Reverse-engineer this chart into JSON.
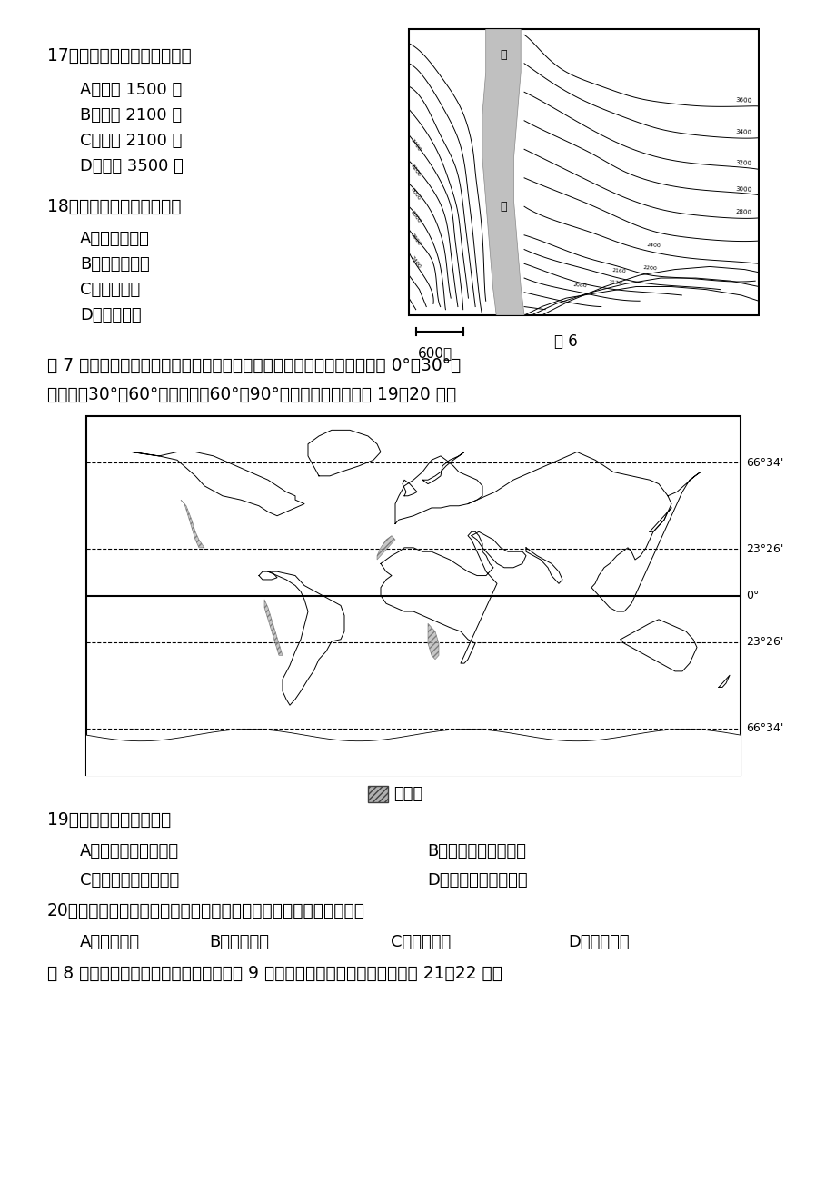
{
  "bg": "#ffffff",
  "q17_stem": "17．图示区域大部分地区海拔",
  "q17_opts": [
    "A．小于 1500 米",
    "B．小于 2100 米",
    "C．大于 2100 米",
    "D．大于 3500 米"
  ],
  "q18_stem": "18．图示地区最有可能位于",
  "q18_opts": [
    "A．塔里木盆地",
    "B．内蒙古高原",
    "C．江南丘陵",
    "D．青藏高原"
  ],
  "para1": "图 7 中的阴影是世界经常出现海雾（海洋上空的雾）的海区。按纬度大小 0°～30°为",
  "para2": "低纬度，30°～60°为中纬度，60°～90°为高纬度。据此回答 19～20 题。",
  "legend_label": "海雾区",
  "q19_stem": "19．图中海雾区主要位于",
  "q19_A": "A．中低纬度大陆西岸",
  "q19_B": "B．中低纬度大陆东岸",
  "q19_C": "C．中高纬度大陆西岸",
  "q19_D": "D．中高纬度大陆东岸",
  "q20_stem": "20．海雾对人类活动的影响很大，下列人类活动受海雾影响最大的是",
  "q20_A": "A．高铁运行",
  "q20_B": "B．橡胶收割",
  "q20_C": "C．海洋航行",
  "q20_D": "D．露天开矿",
  "para3": "图 8 是世界某岛屿地形和河流分布图，图 9 是甲城市降水量分布图。读图回答 21～22 题。",
  "fig6_label": "图 6",
  "scale_label": "600米"
}
